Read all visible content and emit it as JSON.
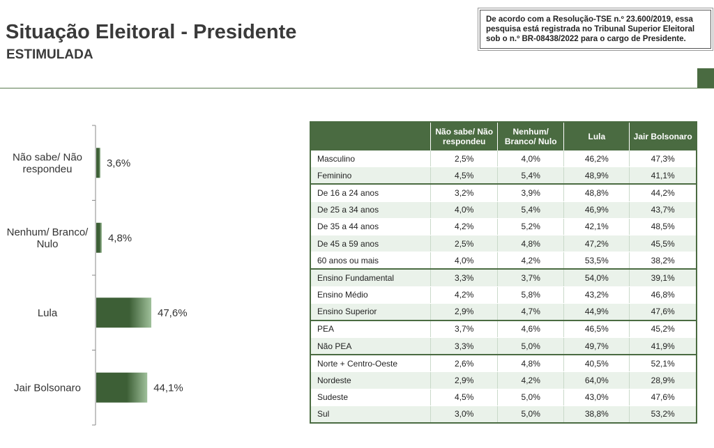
{
  "header": {
    "title": "Situação Eleitoral - Presidente",
    "subtitle": "ESTIMULADA",
    "registration_lines": [
      "De acordo com a Resolução-TSE n.º 23.600/2019, essa",
      "pesquisa está registrada no Tribunal Superior Eleitoral",
      "sob o n.º BR-08438/2022 para o cargo de Presidente."
    ]
  },
  "colors": {
    "bar_dark": "#3d5f36",
    "bar_light": "#9fc09a",
    "header_green": "#4a6b41"
  },
  "chart_data": {
    "type": "bar",
    "orientation": "horizontal",
    "title": "Situação Eleitoral - Presidente (Estimulada)",
    "categories": [
      [
        "Não sabe/ Não",
        "respondeu"
      ],
      [
        "Nenhum/ Branco/",
        "Nulo"
      ],
      [
        "Lula"
      ],
      [
        "Jair Bolsonaro"
      ]
    ],
    "values": [
      3.6,
      4.8,
      47.6,
      44.1
    ],
    "value_labels": [
      "3,6%",
      "4,8%",
      "47,6%",
      "44,1%"
    ],
    "unit": "%",
    "xlim": [
      0,
      100
    ]
  },
  "table": {
    "columns": [
      [
        "Não sabe/ Não",
        "respondeu"
      ],
      [
        "Nenhum/",
        "Branco/ Nulo"
      ],
      [
        "Lula"
      ],
      [
        "Jair Bolsonaro"
      ]
    ],
    "groups": [
      [
        {
          "label": "Masculino",
          "values": [
            "2,5%",
            "4,0%",
            "46,2%",
            "47,3%"
          ]
        },
        {
          "label": "Feminino",
          "values": [
            "4,5%",
            "5,4%",
            "48,9%",
            "41,1%"
          ]
        }
      ],
      [
        {
          "label": "De 16 a 24 anos",
          "values": [
            "3,2%",
            "3,9%",
            "48,8%",
            "44,2%"
          ]
        },
        {
          "label": "De 25 a 34 anos",
          "values": [
            "4,0%",
            "5,4%",
            "46,9%",
            "43,7%"
          ]
        },
        {
          "label": "De 35 a 44 anos",
          "values": [
            "4,2%",
            "5,2%",
            "42,1%",
            "48,5%"
          ]
        },
        {
          "label": "De 45 a 59 anos",
          "values": [
            "2,5%",
            "4,8%",
            "47,2%",
            "45,5%"
          ]
        },
        {
          "label": "60 anos ou mais",
          "values": [
            "4,0%",
            "4,2%",
            "53,5%",
            "38,2%"
          ]
        }
      ],
      [
        {
          "label": "Ensino Fundamental",
          "values": [
            "3,3%",
            "3,7%",
            "54,0%",
            "39,1%"
          ]
        },
        {
          "label": "Ensino Médio",
          "values": [
            "4,2%",
            "5,8%",
            "43,2%",
            "46,8%"
          ]
        },
        {
          "label": "Ensino Superior",
          "values": [
            "2,9%",
            "4,7%",
            "44,9%",
            "47,6%"
          ]
        }
      ],
      [
        {
          "label": "PEA",
          "values": [
            "3,7%",
            "4,6%",
            "46,5%",
            "45,2%"
          ]
        },
        {
          "label": "Não PEA",
          "values": [
            "3,3%",
            "5,0%",
            "49,7%",
            "41,9%"
          ]
        }
      ],
      [
        {
          "label": "Norte + Centro-Oeste",
          "values": [
            "2,6%",
            "4,8%",
            "40,5%",
            "52,1%"
          ]
        },
        {
          "label": "Nordeste",
          "values": [
            "2,9%",
            "4,2%",
            "64,0%",
            "28,9%"
          ]
        },
        {
          "label": "Sudeste",
          "values": [
            "4,5%",
            "5,0%",
            "43,0%",
            "47,6%"
          ]
        },
        {
          "label": "Sul",
          "values": [
            "3,0%",
            "5,0%",
            "38,8%",
            "53,2%"
          ]
        }
      ]
    ]
  }
}
